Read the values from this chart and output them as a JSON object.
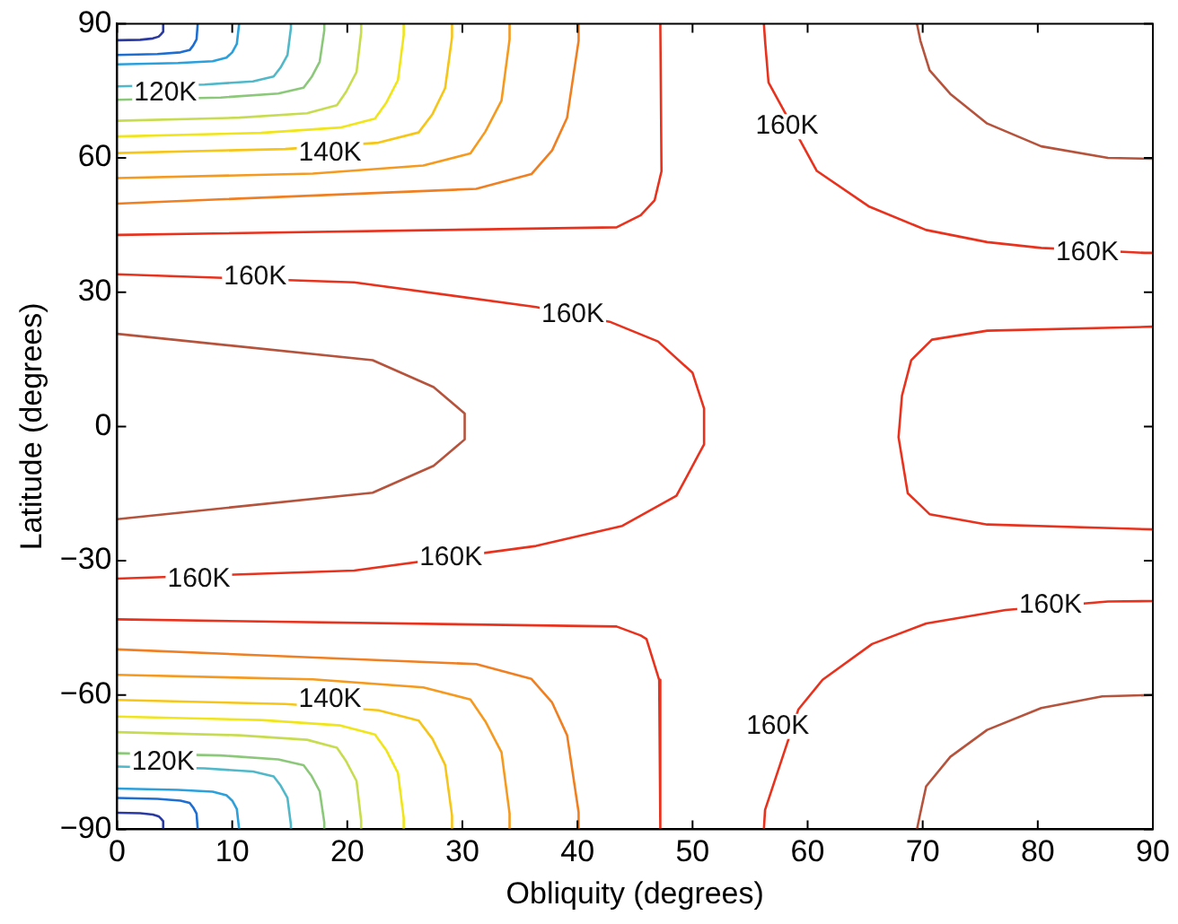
{
  "chart_data": {
    "type": "line",
    "xlabel": "Obliquity (degrees)",
    "ylabel": "Latitude (degrees)",
    "xlim": [
      0,
      90
    ],
    "xticks": [
      0,
      10,
      20,
      30,
      40,
      50,
      60,
      70,
      80,
      90
    ],
    "ylim": [
      -90,
      90
    ],
    "yticks": [
      -90,
      -60,
      -30,
      0,
      30,
      60,
      90
    ],
    "grid": false,
    "legend": false,
    "marker": "none",
    "line_style": "solid",
    "series": [
      {
        "color": "#f07f22",
        "x": [
          0,
          31.2,
          36,
          37.8,
          39.1,
          40.1,
          40.1
        ],
        "values": [
          49.8,
          53.1,
          56.4,
          61.7,
          69,
          86.2,
          90
        ]
      },
      {
        "color": "#f59a1f",
        "x": [
          0,
          17,
          26.6,
          30.7,
          32,
          33.4,
          34.1,
          34.1
        ],
        "values": [
          55.5,
          56.5,
          58.3,
          61,
          65.9,
          72.8,
          86.5,
          90
        ]
      },
      {
        "color": "#f5c518",
        "x": [
          0,
          14.6,
          22.7,
          26.2,
          27.4,
          28.5,
          29.1,
          29.1
        ],
        "values": [
          61.1,
          62,
          63.4,
          65.7,
          69.8,
          75.6,
          87,
          90
        ]
      },
      {
        "color": "#f0e518",
        "x": [
          0,
          12.5,
          19.4,
          22.4,
          23.4,
          24.4,
          24.9,
          24.9
        ],
        "values": [
          64.8,
          65.6,
          66.8,
          68.8,
          72.4,
          77.4,
          87.5,
          90
        ]
      },
      {
        "color": "#c8dc50",
        "x": [
          0,
          10.6,
          16.5,
          19.1,
          19.9,
          20.8,
          21.2,
          21.2
        ],
        "values": [
          68.3,
          69,
          70,
          71.8,
          74.8,
          79.2,
          88,
          90
        ]
      },
      {
        "color": "#8cc87a",
        "x": [
          0,
          9,
          14,
          16.2,
          16.9,
          17.6,
          18,
          18
        ],
        "values": [
          73,
          73.5,
          74.4,
          75.7,
          78.1,
          81.5,
          88.5,
          90
        ]
      },
      {
        "color": "#50b8c8",
        "x": [
          0,
          7.6,
          11.8,
          13.6,
          14.2,
          14.8,
          15.1,
          15.1
        ],
        "values": [
          76,
          76.4,
          77.1,
          78.2,
          80.2,
          83,
          89,
          90
        ]
      },
      {
        "color": "#2aa0dc",
        "x": [
          0,
          5.3,
          8.3,
          9.5,
          10,
          10.4,
          10.6
        ],
        "values": [
          80.9,
          81.2,
          81.6,
          82.4,
          83.6,
          85.5,
          90
        ]
      },
      {
        "color": "#1e6ed2",
        "x": [
          0,
          3.5,
          5.5,
          6.3,
          6.6,
          6.9,
          7
        ],
        "values": [
          83,
          83.2,
          83.6,
          84.1,
          85.1,
          86.5,
          90
        ]
      },
      {
        "color": "#2a3aa0",
        "x": [
          0,
          2,
          3.1,
          3.6,
          3.8,
          4,
          4
        ],
        "values": [
          86.3,
          86.4,
          86.7,
          87.1,
          87.6,
          88.2,
          90
        ]
      },
      {
        "color": "#f07f22",
        "x": [
          0,
          31.2,
          36,
          37.8,
          39.1,
          40.1,
          40.1
        ],
        "values": [
          -49.8,
          -53.1,
          -56.4,
          -61.7,
          -69,
          -86.2,
          -90
        ]
      },
      {
        "color": "#f59a1f",
        "x": [
          0,
          17,
          26.6,
          30.7,
          32,
          33.4,
          34.1,
          34.1
        ],
        "values": [
          -55.5,
          -56.5,
          -58.3,
          -61,
          -65.9,
          -72.8,
          -86.5,
          -90
        ]
      },
      {
        "color": "#f5c518",
        "x": [
          0,
          14.6,
          22.7,
          26.2,
          27.4,
          28.5,
          29.1,
          29.1
        ],
        "values": [
          -61.1,
          -62,
          -63.4,
          -65.7,
          -69.8,
          -75.6,
          -87,
          -90
        ]
      },
      {
        "color": "#f0e518",
        "x": [
          0,
          12.5,
          19.4,
          22.4,
          23.4,
          24.4,
          24.9,
          24.9
        ],
        "values": [
          -64.8,
          -65.6,
          -66.8,
          -68.8,
          -72.4,
          -77.4,
          -87.5,
          -90
        ]
      },
      {
        "color": "#c8dc50",
        "x": [
          0,
          10.6,
          16.5,
          19.1,
          19.9,
          20.8,
          21.2,
          21.2
        ],
        "values": [
          -68.3,
          -69,
          -70,
          -71.8,
          -74.8,
          -79.2,
          -88,
          -90
        ]
      },
      {
        "color": "#8cc87a",
        "x": [
          0,
          9,
          14,
          16.2,
          16.9,
          17.6,
          18,
          18
        ],
        "values": [
          -73,
          -73.5,
          -74.4,
          -75.7,
          -78.1,
          -81.5,
          -88.5,
          -90
        ]
      },
      {
        "color": "#50b8c8",
        "x": [
          0,
          7.6,
          11.8,
          13.6,
          14.2,
          14.8,
          15.1,
          15.1
        ],
        "values": [
          -76,
          -76.4,
          -77.1,
          -78.2,
          -80.2,
          -83,
          -89,
          -90
        ]
      },
      {
        "color": "#2aa0dc",
        "x": [
          0,
          5.3,
          8.3,
          9.5,
          10,
          10.4,
          10.6
        ],
        "values": [
          -80.9,
          -81.2,
          -81.6,
          -82.4,
          -83.6,
          -85.5,
          -90
        ]
      },
      {
        "color": "#1e6ed2",
        "x": [
          0,
          3.5,
          5.5,
          6.3,
          6.6,
          6.9,
          7
        ],
        "values": [
          -83,
          -83.2,
          -83.6,
          -84.1,
          -85.1,
          -86.5,
          -90
        ]
      },
      {
        "color": "#2a3aa0",
        "x": [
          0,
          2,
          3.1,
          3.6,
          3.8,
          4,
          4
        ],
        "values": [
          -86.3,
          -86.4,
          -86.7,
          -87.1,
          -87.6,
          -88.2,
          -90
        ]
      },
      {
        "color": "#b5533c",
        "x": [
          0,
          22.2,
          27.5,
          30.2,
          30.2,
          27.5,
          22.2,
          0
        ],
        "values": [
          20.7,
          14.8,
          8.8,
          2.9,
          -2.9,
          -8.8,
          -14.8,
          -20.7
        ]
      },
      {
        "color": "#e8321e",
        "x": [
          0,
          20.6,
          36.4,
          42.8,
          47,
          50,
          51,
          51,
          48.6,
          43.9,
          36.4,
          20.6,
          0
        ],
        "values": [
          34,
          32.2,
          26.7,
          23.4,
          19,
          12,
          4,
          -4,
          -15.5,
          -22.2,
          -26.7,
          -32.2,
          -34
        ]
      },
      {
        "color": "#e8321e",
        "x": [
          0,
          43.4,
          45.5,
          46.7,
          47.3,
          47.2
        ],
        "values": [
          42.8,
          44.5,
          47.2,
          50.5,
          57,
          90
        ]
      },
      {
        "color": "#e8321e",
        "x": [
          0,
          43.4,
          45.5,
          46,
          47.1,
          47.2
        ],
        "values": [
          -43.1,
          -44.7,
          -46.7,
          -47.5,
          -56.6,
          -90
        ]
      },
      {
        "color": "#e8321e",
        "x": [
          56.2,
          56.3,
          56.6,
          60.8,
          65.3,
          70.3,
          75.6,
          80.3,
          89.3,
          90
        ],
        "values": [
          90,
          86.2,
          76.9,
          57.1,
          49.2,
          43.9,
          41.2,
          39.9,
          38.8,
          38.8
        ]
      },
      {
        "color": "#e8321e",
        "x": [
          56.2,
          56.3,
          59.2,
          61.3,
          65.6,
          70.3,
          77.2,
          86.1,
          90
        ],
        "values": [
          -90,
          -85.7,
          -63.2,
          -56.6,
          -48.6,
          -44,
          -41,
          -39.1,
          -39
        ]
      },
      {
        "color": "#b5533c",
        "x": [
          69.5,
          69.8,
          70.6,
          72.4,
          75.6,
          80.3,
          86.1,
          90
        ],
        "values": [
          90,
          86.2,
          79.6,
          74.3,
          67.7,
          62.6,
          60,
          59.8
        ]
      },
      {
        "color": "#b5533c",
        "x": [
          69.5,
          69.8,
          70.3,
          72.4,
          75.6,
          80.3,
          85.6,
          90
        ],
        "values": [
          -90,
          -86.3,
          -80.4,
          -73.8,
          -67.8,
          -62.9,
          -60.3,
          -60
        ]
      },
      {
        "color": "#e8321e",
        "x": [
          90,
          75.6,
          70.8,
          69,
          68.2,
          67.9,
          68.7,
          70.6,
          75.6,
          90
        ],
        "values": [
          22.3,
          21.4,
          19.4,
          14.8,
          6.9,
          -2.4,
          -14.9,
          -19.6,
          -21.9,
          -23
        ]
      }
    ],
    "annotations": [
      {
        "text": "120K",
        "x": 4.2,
        "y": 74.5
      },
      {
        "text": "140K",
        "x": 18.5,
        "y": 61
      },
      {
        "text": "140K",
        "x": 18.5,
        "y": -61
      },
      {
        "text": "120K",
        "x": 4,
        "y": -75
      },
      {
        "text": "160K",
        "x": 12,
        "y": 33.5
      },
      {
        "text": "160K",
        "x": 39.6,
        "y": 25
      },
      {
        "text": "160K",
        "x": 58.2,
        "y": 67
      },
      {
        "text": "160K",
        "x": 84.3,
        "y": 38.9
      },
      {
        "text": "160K",
        "x": 7.1,
        "y": -34.1
      },
      {
        "text": "160K",
        "x": 29,
        "y": -29.3
      },
      {
        "text": "160K",
        "x": 81.1,
        "y": -40
      },
      {
        "text": "160K",
        "x": 57.4,
        "y": -67
      }
    ]
  }
}
